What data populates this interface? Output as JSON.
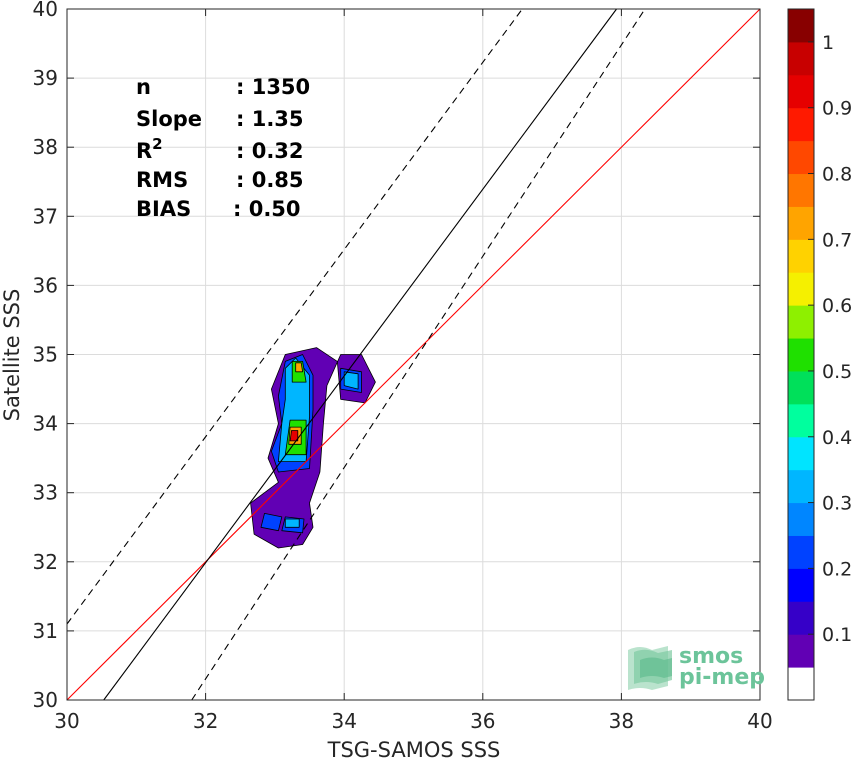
{
  "chart_data": {
    "type": "heatmap",
    "subtype": "density-contour-scatter",
    "xlabel": "TSG-SAMOS SSS",
    "ylabel": "Satellite SSS",
    "xlim": [
      30,
      40
    ],
    "ylim": [
      30,
      40
    ],
    "xticks": [
      "30",
      "32",
      "34",
      "36",
      "38",
      "40"
    ],
    "yticks": [
      "30",
      "31",
      "32",
      "33",
      "34",
      "35",
      "36",
      "37",
      "38",
      "39",
      "40"
    ],
    "grid": true,
    "stats": [
      {
        "label": "n",
        "value": ": 1350"
      },
      {
        "label": "Slope",
        "value": ": 1.35"
      },
      {
        "label": "R",
        "sup": "2",
        "value": ": 0.32"
      },
      {
        "label": "RMS",
        "value": ": 0.85"
      },
      {
        "label": "BIAS",
        "value": ": 0.50"
      }
    ],
    "lines": [
      {
        "role": "one-to-one",
        "color": "#ff0000",
        "style": "solid",
        "points": [
          [
            30,
            30
          ],
          [
            40,
            40
          ]
        ]
      },
      {
        "role": "regression",
        "color": "#000000",
        "style": "solid",
        "points": [
          [
            30.53,
            30
          ],
          [
            37.93,
            40
          ]
        ]
      },
      {
        "role": "upper-bound",
        "color": "#000000",
        "style": "dashed",
        "points": [
          [
            30,
            31.1
          ],
          [
            36.57,
            40
          ]
        ]
      },
      {
        "role": "lower-bound",
        "color": "#000000",
        "style": "dashed",
        "points": [
          [
            31.8,
            30
          ],
          [
            38.34,
            40
          ]
        ]
      }
    ],
    "density_levels": [
      {
        "level": 0.05,
        "polygons": [
          [
            [
              33.05,
              32.2
            ],
            [
              33.4,
              32.25
            ],
            [
              33.55,
              32.5
            ],
            [
              33.5,
              32.85
            ],
            [
              33.65,
              33.3
            ],
            [
              33.7,
              34.0
            ],
            [
              33.75,
              34.55
            ],
            [
              33.95,
              35.0
            ],
            [
              34.25,
              35.0
            ],
            [
              34.45,
              34.6
            ],
            [
              34.3,
              34.3
            ],
            [
              33.95,
              34.35
            ],
            [
              33.9,
              34.9
            ],
            [
              33.6,
              35.1
            ],
            [
              33.15,
              35.0
            ],
            [
              32.95,
              34.5
            ],
            [
              33.05,
              34.0
            ],
            [
              32.9,
              33.5
            ],
            [
              33.05,
              33.15
            ],
            [
              32.65,
              32.85
            ],
            [
              32.7,
              32.4
            ]
          ]
        ]
      },
      {
        "level": 0.2,
        "polygons": [
          [
            [
              32.85,
              32.7
            ],
            [
              33.1,
              32.65
            ],
            [
              33.05,
              32.45
            ],
            [
              32.8,
              32.5
            ]
          ],
          [
            [
              33.1,
              32.45
            ],
            [
              33.4,
              32.42
            ],
            [
              33.42,
              32.62
            ],
            [
              33.15,
              32.65
            ]
          ],
          [
            [
              33.05,
              33.3
            ],
            [
              33.5,
              33.35
            ],
            [
              33.55,
              34.2
            ],
            [
              33.55,
              34.7
            ],
            [
              33.4,
              35.0
            ],
            [
              33.15,
              34.9
            ],
            [
              33.05,
              34.4
            ],
            [
              33.1,
              34.0
            ],
            [
              32.95,
              33.6
            ]
          ],
          [
            [
              33.95,
              34.8
            ],
            [
              34.25,
              34.75
            ],
            [
              34.25,
              34.45
            ],
            [
              33.95,
              34.5
            ]
          ]
        ]
      },
      {
        "level": 0.3,
        "polygons": [
          [
            [
              33.15,
              32.5
            ],
            [
              33.35,
              32.5
            ],
            [
              33.35,
              32.62
            ],
            [
              33.15,
              32.62
            ]
          ],
          [
            [
              33.05,
              33.45
            ],
            [
              33.45,
              33.45
            ],
            [
              33.5,
              34.1
            ],
            [
              33.5,
              34.7
            ],
            [
              33.3,
              34.95
            ],
            [
              33.15,
              34.8
            ],
            [
              33.15,
              34.35
            ],
            [
              33.1,
              34.0
            ]
          ],
          [
            [
              34.0,
              34.75
            ],
            [
              34.2,
              34.72
            ],
            [
              34.2,
              34.5
            ],
            [
              34.0,
              34.55
            ]
          ]
        ]
      },
      {
        "level": 0.5,
        "polygons": [
          [
            [
              33.15,
              33.55
            ],
            [
              33.45,
              33.55
            ],
            [
              33.45,
              34.05
            ],
            [
              33.22,
              34.05
            ]
          ],
          [
            [
              33.25,
              34.6
            ],
            [
              33.45,
              34.6
            ],
            [
              33.4,
              34.9
            ],
            [
              33.25,
              34.9
            ]
          ]
        ]
      },
      {
        "level": 0.7,
        "polygons": [
          [
            [
              33.2,
              33.7
            ],
            [
              33.38,
              33.7
            ],
            [
              33.38,
              33.95
            ],
            [
              33.22,
              33.95
            ]
          ],
          [
            [
              33.3,
              34.75
            ],
            [
              33.4,
              34.75
            ],
            [
              33.38,
              34.88
            ],
            [
              33.3,
              34.88
            ]
          ]
        ]
      },
      {
        "level": 0.9,
        "polygons": [
          [
            [
              33.22,
              33.75
            ],
            [
              33.33,
              33.75
            ],
            [
              33.33,
              33.9
            ],
            [
              33.24,
              33.9
            ]
          ]
        ]
      }
    ],
    "colorbar": {
      "ticks": [
        "0.1",
        "0.2",
        "0.3",
        "0.4",
        "0.5",
        "0.6",
        "0.7",
        "0.8",
        "0.9",
        "1"
      ],
      "range": [
        0,
        1
      ],
      "colors": [
        "#ffffff",
        "#6100b4",
        "#3600c8",
        "#0000ff",
        "#0042ff",
        "#0086ff",
        "#00b6ff",
        "#00e4ff",
        "#00ff9e",
        "#00e05a",
        "#1fe000",
        "#8ef000",
        "#f5f000",
        "#ffd200",
        "#ffa400",
        "#ff7600",
        "#ff4800",
        "#ff1a00",
        "#e60000",
        "#c80000",
        "#880000"
      ]
    }
  },
  "logo": {
    "line1": "smos",
    "line2": "pi-mep"
  }
}
